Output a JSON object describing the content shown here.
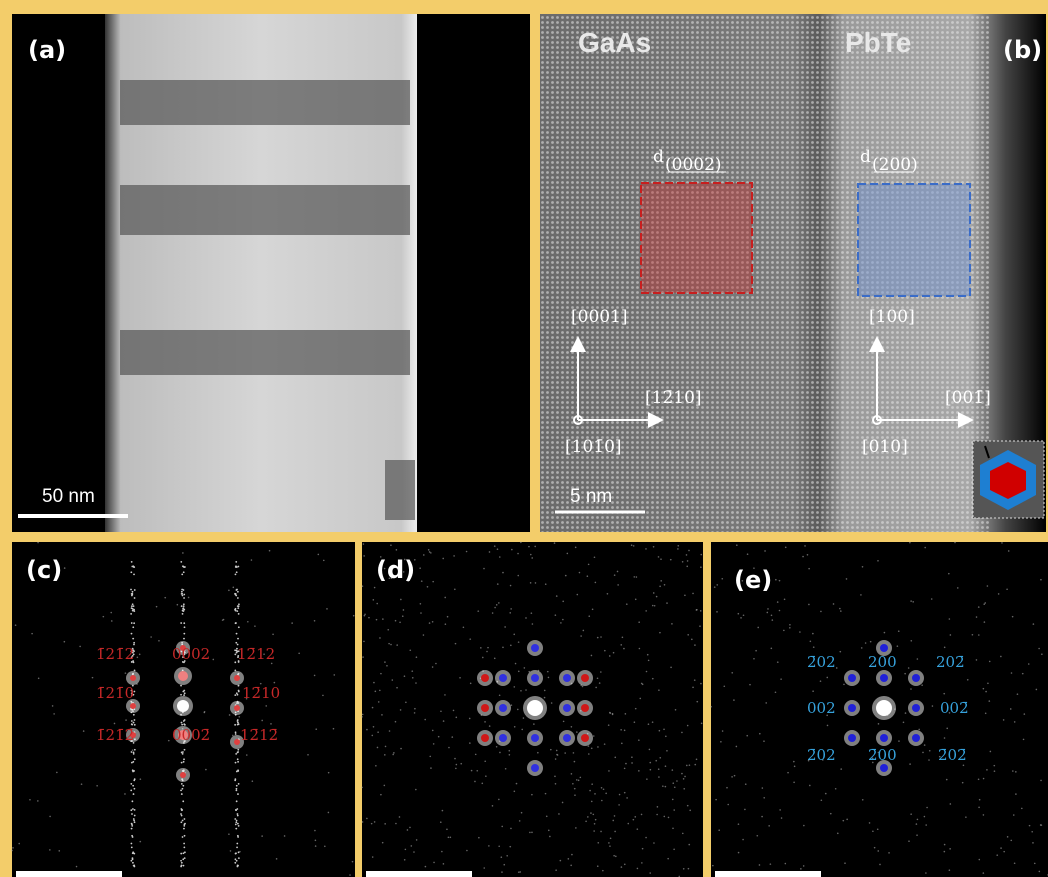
{
  "panels": [
    {
      "label": "(a)",
      "scale_bar": "50 nm"
    },
    {
      "label": "(b)",
      "materials": [
        "GaAs",
        "PbTe"
      ],
      "spacings": [
        {
          "symbol": "d",
          "index": "(0002)"
        },
        {
          "symbol": "d",
          "index": "(200)"
        }
      ],
      "directions": [
        "[0001]",
        "[12̄10]",
        "[101̄0]",
        "[100]",
        "[001̄]",
        "[010]"
      ],
      "scale_bar": "5 nm"
    },
    {
      "label": "(c)",
      "spots": [
        "1̄21̄2",
        "0002",
        "12̄12",
        "1̄21̄0",
        "12̄10",
        "1̄21̄2̄",
        "0002̄",
        "12̄12̄"
      ]
    },
    {
      "label": "(d)"
    },
    {
      "label": "(e)",
      "spots": [
        "2̄02",
        "200",
        "202̄",
        "002",
        "002̄",
        "2̄02",
        "2̄00",
        "2̄02̄"
      ]
    }
  ]
}
